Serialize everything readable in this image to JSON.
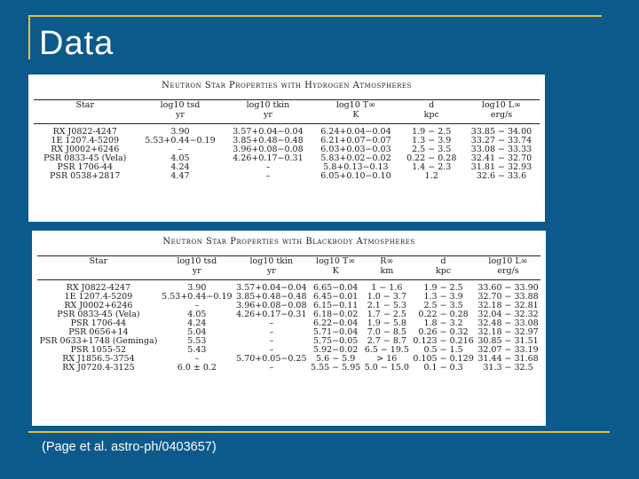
{
  "slide": {
    "title": "Data",
    "citation": "(Page et al. astro-ph/0403657)"
  },
  "hydrogen_table": {
    "title": "Neutron Star Properties with Hydrogen Atmospheres",
    "headers": [
      {
        "top": "Star",
        "unit": ""
      },
      {
        "top": "log10 tsd",
        "unit": "yr"
      },
      {
        "top": "log10 tkin",
        "unit": "yr"
      },
      {
        "top": "log10 T∞",
        "unit": "K"
      },
      {
        "top": "d",
        "unit": "kpc"
      },
      {
        "top": "log10 L∞",
        "unit": "erg/s"
      }
    ],
    "rows": [
      [
        "RX J0822-4247",
        "3.90",
        "3.57+0.04−0.04",
        "6.24+0.04−0.04",
        "1.9 − 2.5",
        "33.85 − 34.00"
      ],
      [
        "1E 1207.4-5209",
        "5.53+0.44−0.19",
        "3.85+0.48−0.48",
        "6.21+0.07−0.07",
        "1.3 − 3.9",
        "33.27 − 33.74"
      ],
      [
        "RX J0002+6246",
        "–",
        "3.96+0.08−0.08",
        "6.03+0.03−0.03",
        "2.5 − 3.5",
        "33.08 − 33.33"
      ],
      [
        "PSR 0833-45 (Vela)",
        "4.05",
        "4.26+0.17−0.31",
        "5.83+0.02−0.02",
        "0.22 − 0.28",
        "32.41 − 32.70"
      ],
      [
        "PSR 1706-44",
        "4.24",
        "–",
        "5.8+0.13−0.13",
        "1.4 − 2.3",
        "31.81 − 32.93"
      ],
      [
        "PSR 0538+2817",
        "4.47",
        "–",
        "6.05+0.10−0.10",
        "1.2",
        "32.6 − 33.6"
      ]
    ]
  },
  "blackbody_table": {
    "title": "Neutron Star Properties with Blackbody Atmospheres",
    "headers": [
      {
        "top": "Star",
        "unit": ""
      },
      {
        "top": "log10 tsd",
        "unit": "yr"
      },
      {
        "top": "log10 tkin",
        "unit": "yr"
      },
      {
        "top": "log10 T∞",
        "unit": "K"
      },
      {
        "top": "R∞",
        "unit": "km"
      },
      {
        "top": "d",
        "unit": "kpc"
      },
      {
        "top": "log10 L∞",
        "unit": "erg/s"
      }
    ],
    "rows": [
      [
        "RX J0822-4247",
        "3.90",
        "3.57+0.04−0.04",
        "6.65−0.04",
        "1 − 1.6",
        "1.9 − 2.5",
        "33.60 − 33.90"
      ],
      [
        "1E 1207.4-5209",
        "5.53+0.44−0.19",
        "3.85+0.48−0.48",
        "6.45−0.01",
        "1.0 − 3.7",
        "1.3 − 3.9",
        "32.70 − 33.88"
      ],
      [
        "RX J0002+6246",
        "–",
        "3.96+0.08−0.08",
        "6.15−0.11",
        "2.1 − 5.3",
        "2.5 − 3.5",
        "32.18 − 32.81"
      ],
      [
        "PSR 0833-45 (Vela)",
        "4.05",
        "4.26+0.17−0.31",
        "6.18−0.02",
        "1.7 − 2.5",
        "0.22 − 0.28",
        "32.04 − 32.32"
      ],
      [
        "PSR 1706-44",
        "4.24",
        "–",
        "6.22−0.04",
        "1.9 − 5.8",
        "1.8 − 3.2",
        "32.48 − 33.08"
      ],
      [
        "PSR 0656+14",
        "5.04",
        "–",
        "5.71−0.04",
        "7.0 − 8.5",
        "0.26 − 0.32",
        "32.18 − 32.97"
      ],
      [
        "PSR 0633+1748 (Geminga)",
        "5.53",
        "–",
        "5.75−0.05",
        "2.7 − 8.7",
        "0.123 − 0.216",
        "30.85 − 31.51"
      ],
      [
        "PSR 1055-52",
        "5.43",
        "–",
        "5.92−0.02",
        "6.5 − 19.5",
        "0.5 − 1.5",
        "32.07 − 33.19"
      ],
      [
        "RX J1856.5-3754",
        "–",
        "5.70+0.05−0.25",
        "5.6 − 5.9",
        "> 16",
        "0.105 − 0.129",
        "31.44 − 31.68"
      ],
      [
        "RX J0720.4-3125",
        "6.0 ± 0.2",
        "–",
        "5.55 − 5.95",
        "5.0 − 15.0",
        "0.1 − 0.3",
        "31.3 − 32.5"
      ]
    ]
  },
  "colors": {
    "background": "#0c5a8c",
    "frame_line": "#e2c040"
  }
}
